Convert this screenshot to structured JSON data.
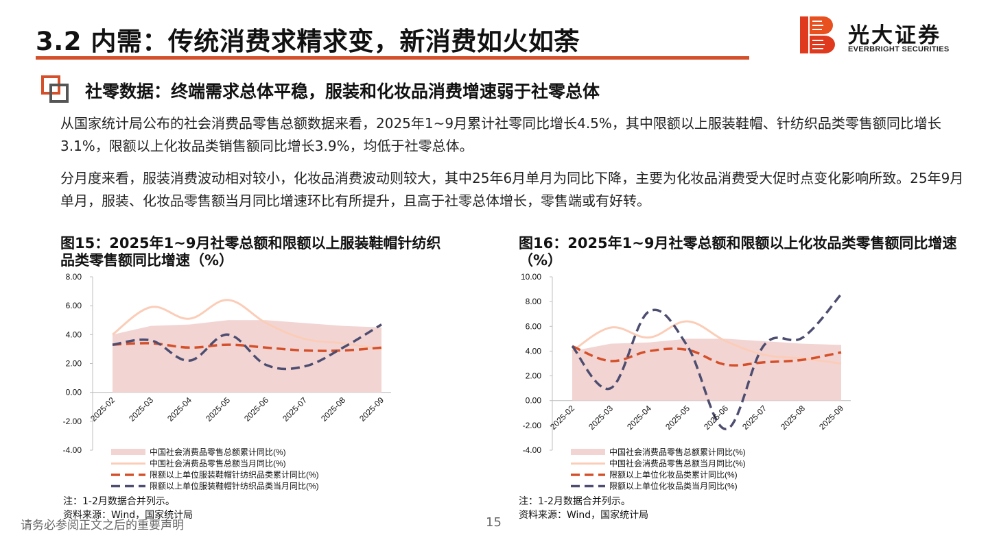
{
  "header": {
    "title": "3.2 内需：传统消费求精求变，新消费如火如荼",
    "logo_cn": "光大证券",
    "logo_en": "EVERBRIGHT SECURITIES",
    "accent_color": "#d4502a"
  },
  "section": {
    "title": "社零数据：终端需求总体平稳，服装和化妆品消费增速弱于社零总体"
  },
  "paragraphs": [
    "从国家统计局公布的社会消费品零售总额数据来看，2025年1~9月累计社零同比增长4.5%，其中限额以上服装鞋帽、针纺织品类零售额同比增长3.1%，限额以上化妆品类销售额同比增长3.9%，均低于社零总体。",
    "分月度来看，服装消费波动相对较小，化妆品消费波动则较大，其中25年6月单月为同比下降，主要为化妆品消费受大促时点变化影响所致。25年9月单月，服装、化妆品零售额当月同比增速环比有所提升，且高于社零总体增长，零售端或有好转。"
  ],
  "figures": [
    {
      "title": "图15：2025年1~9月社零总额和限额以上服装鞋帽针纺织品类零售额同比增速（%）",
      "note": "注：1-2月数据合并列示。",
      "source": "资料来源：Wind，国家统计局"
    },
    {
      "title": "图16：2025年1~9月社零总额和限额以上化妆品类零售额同比增速（%）",
      "note": "注：1-2月数据合并列示。",
      "source": "资料来源：Wind，国家统计局"
    }
  ],
  "chart_data": [
    {
      "type": "line",
      "categories": [
        "2025-02",
        "2025-03",
        "2025-04",
        "2025-05",
        "2025-06",
        "2025-07",
        "2025-08",
        "2025-09"
      ],
      "ylim": [
        -4,
        8
      ],
      "yticks": [
        "8.00",
        "6.00",
        "4.00",
        "2.00",
        "0.00",
        "-2.00",
        "-4.00"
      ],
      "series": [
        {
          "name": "中国社会消费品零售总额累计同比(%)",
          "style": "area",
          "color": "#f2d4d3",
          "values": [
            4.0,
            4.6,
            4.7,
            5.0,
            5.0,
            4.8,
            4.6,
            4.5
          ]
        },
        {
          "name": "中国社会消费品零售总额当月同比(%)",
          "style": "line",
          "color": "#fbcdb8",
          "values": [
            4.0,
            5.9,
            5.1,
            6.4,
            4.8,
            3.7,
            3.4,
            3.0
          ]
        },
        {
          "name": "限额以上单位服装鞋帽针纺织品类累计同比(%)",
          "style": "dashed",
          "color": "#d4502a",
          "values": [
            3.3,
            3.4,
            3.1,
            3.3,
            3.1,
            2.9,
            2.9,
            3.1
          ]
        },
        {
          "name": "限额以上单位服装鞋帽针纺织品类当月同比(%)",
          "style": "dashed",
          "color": "#4d4d70",
          "values": [
            3.3,
            3.6,
            2.2,
            4.0,
            1.9,
            1.8,
            3.1,
            4.7
          ]
        }
      ]
    },
    {
      "type": "line",
      "categories": [
        "2025-02",
        "2025-03",
        "2025-04",
        "2025-05",
        "2025-06",
        "2025-07",
        "2025-08",
        "2025-09"
      ],
      "ylim": [
        -4,
        10
      ],
      "yticks": [
        "10.00",
        "8.00",
        "6.00",
        "4.00",
        "2.00",
        "0.00",
        "-2.00",
        "-4.00"
      ],
      "series": [
        {
          "name": "中国社会消费品零售总额累计同比(%)",
          "style": "area",
          "color": "#f2d4d3",
          "values": [
            4.0,
            4.6,
            4.7,
            5.0,
            5.0,
            4.8,
            4.6,
            4.5
          ]
        },
        {
          "name": "中国社会消费品零售总额当月同比(%)",
          "style": "line",
          "color": "#fbcdb8",
          "values": [
            4.0,
            5.9,
            5.1,
            6.4,
            4.8,
            3.7,
            3.4,
            3.0
          ]
        },
        {
          "name": "限额以上单位化妆品类累计同比(%)",
          "style": "dashed",
          "color": "#d4502a",
          "values": [
            4.4,
            3.2,
            4.0,
            4.1,
            2.9,
            3.1,
            3.3,
            3.9
          ]
        },
        {
          "name": "限额以上单位化妆品类当月同比(%)",
          "style": "dashed",
          "color": "#4d4d70",
          "values": [
            4.4,
            1.0,
            7.2,
            4.4,
            -2.3,
            4.5,
            5.1,
            8.6
          ]
        }
      ]
    }
  ],
  "footer": {
    "disclaimer": "请务必参阅正文之后的重要声明",
    "page": "15"
  }
}
